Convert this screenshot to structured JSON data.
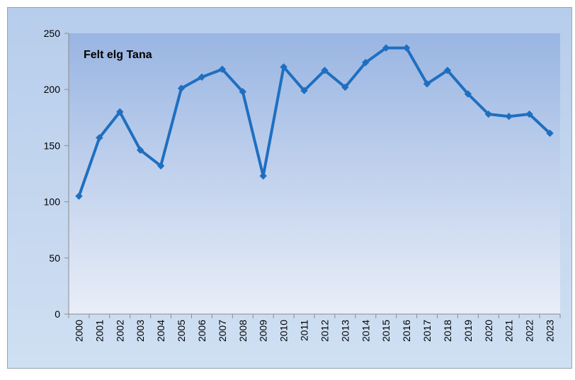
{
  "chart_data": {
    "type": "line",
    "title": "Felt elg Tana",
    "xlabel": "",
    "ylabel": "",
    "categories": [
      "2000",
      "2001",
      "2002",
      "2003",
      "2004",
      "2005",
      "2006",
      "2007",
      "2008",
      "2009",
      "2010",
      "2011",
      "2012",
      "2013",
      "2014",
      "2015",
      "2016",
      "2017",
      "2018",
      "2019",
      "2020",
      "2021",
      "2022",
      "2023"
    ],
    "values": [
      105,
      157,
      180,
      146,
      132,
      201,
      211,
      218,
      198,
      123,
      220,
      199,
      217,
      202,
      224,
      237,
      237,
      205,
      217,
      196,
      178,
      176,
      178,
      161
    ],
    "ylim": [
      0,
      250
    ],
    "yticks": [
      0,
      50,
      100,
      150,
      200,
      250
    ],
    "grid": false,
    "legend": "none",
    "line_color": "#1f6fc0",
    "plot_gradient": [
      "#99b5e2",
      "#e9eef8"
    ]
  }
}
